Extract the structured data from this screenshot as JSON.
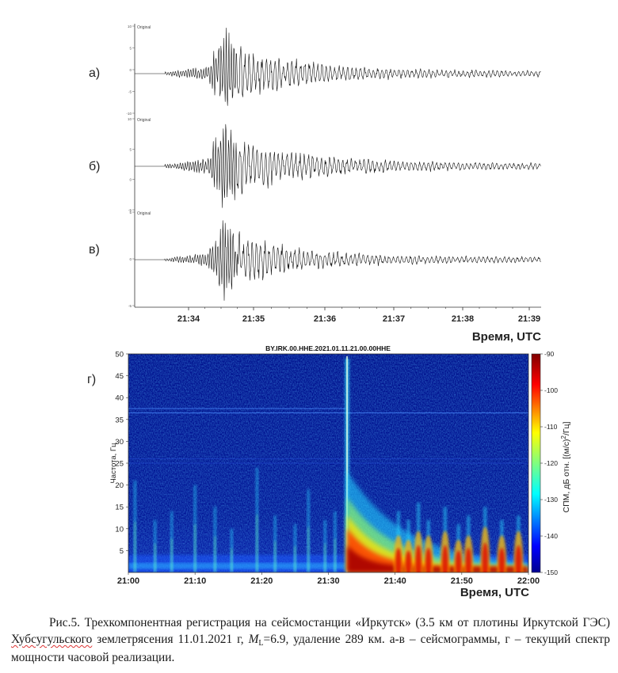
{
  "chart_data": [
    {
      "type": "line",
      "panel": "seismograms",
      "x_ticks": [
        "21:34",
        "21:35",
        "21:36",
        "21:37",
        "21:38",
        "21:39"
      ],
      "xlabel": "Время, UTC",
      "panels": [
        {
          "label": "а)",
          "trace_name": "Original",
          "y_ticks": [
            "10",
            "5",
            "0",
            "-5",
            "-10"
          ]
        },
        {
          "label": "б)",
          "trace_name": "Original",
          "y_ticks": [
            "10",
            "5",
            "0",
            "-5"
          ]
        },
        {
          "label": "в)",
          "trace_name": "Original",
          "y_ticks": [
            "5",
            "0",
            "-5"
          ]
        }
      ]
    },
    {
      "type": "heatmap",
      "panel": "spectrogram",
      "label": "г)",
      "title": "BY.IRK.00.HHE.2021.01.11.21.00.00HHE",
      "x_ticks": [
        "21:00",
        "21:10",
        "21:20",
        "21:30",
        "21:40",
        "21:50",
        "22:00"
      ],
      "xlabel": "Время, UTC",
      "ylabel": "Частота, Гц",
      "y_ticks": [
        50,
        45,
        40,
        35,
        30,
        25,
        20,
        15,
        10,
        5
      ],
      "ylim": [
        0,
        50
      ],
      "colorbar_ticks": [
        -90,
        -100,
        -110,
        -120,
        -130,
        -140,
        -150
      ],
      "colorbar_range": [
        -150,
        -90
      ],
      "colorbar_label": "СПМ, дБ отн. [(м/с)",
      "colorbar_label_sup": "2",
      "colorbar_label_end": "/Гц]"
    }
  ],
  "caption": {
    "part1": "Рис.5. Трехкомпонентная регистрация на сейсмостанции «Иркутск» (3.5 км от плотины Иркутской ГЭС) ",
    "underlined": "Хубсугульского",
    "part2": " землетрясения 11.01.2021 г, ",
    "magnitude_symbol": "M",
    "magnitude_sub": "L",
    "part3": "=6.9, удаление 289 км. а-в – сейсмограммы, г – текущий спектр мощности часовой реализации."
  }
}
